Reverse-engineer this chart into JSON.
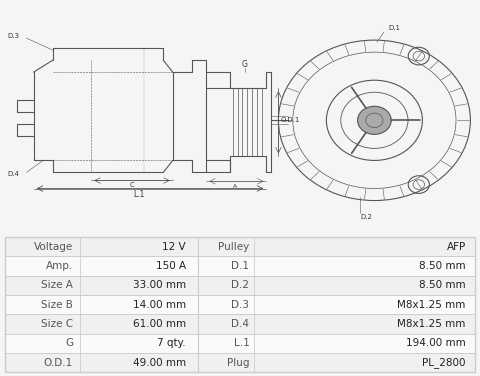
{
  "title": "",
  "image_bg": "#f5f5f5",
  "table_bg_header": "#e8e8e8",
  "table_bg_row_odd": "#f0f0f0",
  "table_bg_row_even": "#fafafa",
  "table_border": "#cccccc",
  "table_data": [
    [
      "Voltage",
      "12 V",
      "Pulley",
      "AFP"
    ],
    [
      "Amp.",
      "150 A",
      "D.1",
      "8.50 mm"
    ],
    [
      "Size A",
      "33.00 mm",
      "D.2",
      "8.50 mm"
    ],
    [
      "Size B",
      "14.00 mm",
      "D.3",
      "M8x1.25 mm"
    ],
    [
      "Size C",
      "61.00 mm",
      "D.4",
      "M8x1.25 mm"
    ],
    [
      "G",
      "7 qty.",
      "L.1",
      "194.00 mm"
    ],
    [
      "O.D.1",
      "49.00 mm",
      "Plug",
      "PL_2800"
    ]
  ],
  "drawing_area_color": "#ffffff",
  "line_color": "#555555",
  "label_color": "#333333",
  "font_size_table": 7.5,
  "font_size_labels": 6.5
}
